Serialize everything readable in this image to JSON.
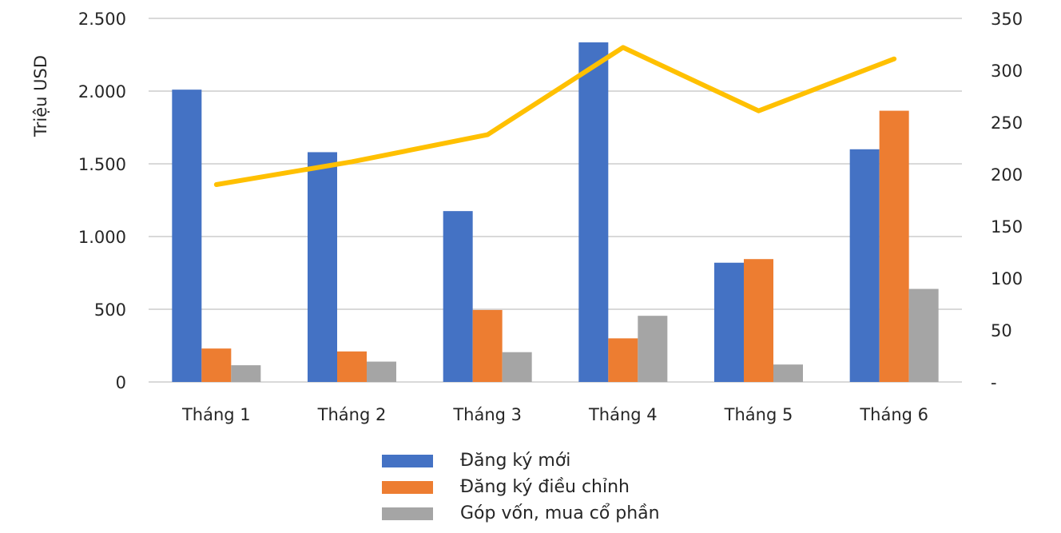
{
  "chart_data": {
    "type": "bar+line",
    "title": "",
    "ylabel": "Triệu USD",
    "ylabel_right": "",
    "ylim": [
      0,
      2500
    ],
    "ylim_right": [
      0,
      350
    ],
    "yticks": [
      "0",
      "500",
      "1.000",
      "1.500",
      "2.000",
      "2.500"
    ],
    "yticks_right": [
      "-",
      "50",
      "100",
      "150",
      "200",
      "250",
      "300",
      "350"
    ],
    "categories": [
      "Tháng 1",
      "Tháng 2",
      "Tháng 3",
      "Tháng 4",
      "Tháng 5",
      "Tháng 6"
    ],
    "series": [
      {
        "name": "Đăng ký mới",
        "type": "bar",
        "axis": "left",
        "color": "#4472C4",
        "values": [
          2010,
          1580,
          1175,
          2335,
          820,
          1600
        ]
      },
      {
        "name": "Đăng ký điều chỉnh",
        "type": "bar",
        "axis": "left",
        "color": "#ED7D31",
        "values": [
          230,
          210,
          495,
          300,
          845,
          1865
        ]
      },
      {
        "name": "Góp vốn, mua cổ phần",
        "type": "bar",
        "axis": "left",
        "color": "#A5A5A5",
        "values": [
          115,
          140,
          205,
          455,
          120,
          640
        ]
      },
      {
        "name": "",
        "type": "line",
        "axis": "right",
        "color": "#FFC000",
        "values": [
          190,
          212,
          238,
          322,
          261,
          311
        ]
      }
    ],
    "grid": true,
    "legend_position": "bottom"
  },
  "legend": {
    "items": [
      {
        "label": "Đăng ký mới",
        "color": "#4472C4"
      },
      {
        "label": "Đăng ký điều chỉnh",
        "color": "#ED7D31"
      },
      {
        "label": "Góp vốn, mua cổ phần",
        "color": "#A5A5A5"
      }
    ]
  }
}
